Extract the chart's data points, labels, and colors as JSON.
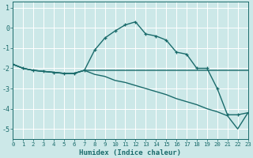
{
  "xlabel": "Humidex (Indice chaleur)",
  "xlim": [
    0,
    23
  ],
  "ylim": [
    -5.5,
    1.3
  ],
  "yticks": [
    1,
    0,
    -1,
    -2,
    -3,
    -4,
    -5
  ],
  "xticks": [
    0,
    1,
    2,
    3,
    4,
    5,
    6,
    7,
    8,
    9,
    10,
    11,
    12,
    13,
    14,
    15,
    16,
    17,
    18,
    19,
    20,
    21,
    22,
    23
  ],
  "background_color": "#cce8e8",
  "grid_color": "#aad4d4",
  "line_color": "#1a6b6b",
  "line1_x": [
    0,
    1,
    2,
    3,
    4,
    5,
    6,
    7,
    8,
    9,
    10,
    11,
    12,
    13,
    14,
    15,
    16,
    17,
    18,
    19,
    20,
    21,
    22,
    23
  ],
  "line1_y": [
    -1.8,
    -2.0,
    -2.1,
    -2.15,
    -2.2,
    -2.25,
    -2.25,
    -2.1,
    -1.1,
    -0.5,
    -0.15,
    0.15,
    0.3,
    -0.3,
    -0.4,
    -0.6,
    -1.2,
    -1.3,
    -2.0,
    -2.0,
    -3.0,
    -4.3,
    -4.3,
    -4.2
  ],
  "line2_x": [
    0,
    1,
    2,
    3,
    4,
    5,
    6,
    7,
    8,
    9,
    10,
    11,
    12,
    13,
    14,
    15,
    16,
    17,
    18,
    19,
    20,
    21,
    22,
    23
  ],
  "line2_y": [
    -1.8,
    -2.0,
    -2.1,
    -2.15,
    -2.2,
    -2.25,
    -2.25,
    -2.1,
    -2.1,
    -2.1,
    -2.1,
    -2.1,
    -2.1,
    -2.1,
    -2.1,
    -2.1,
    -2.1,
    -2.1,
    -2.1,
    -2.1,
    -2.1,
    -2.1,
    -2.1,
    -2.1
  ],
  "line3_x": [
    0,
    1,
    2,
    3,
    4,
    5,
    6,
    7,
    8,
    9,
    10,
    11,
    12,
    13,
    14,
    15,
    16,
    17,
    18,
    19,
    20,
    21,
    22,
    23
  ],
  "line3_y": [
    -1.8,
    -2.0,
    -2.1,
    -2.15,
    -2.2,
    -2.25,
    -2.25,
    -2.1,
    -2.3,
    -2.4,
    -2.6,
    -2.7,
    -2.85,
    -3.0,
    -3.15,
    -3.3,
    -3.5,
    -3.65,
    -3.8,
    -4.0,
    -4.15,
    -4.35,
    -5.0,
    -4.2
  ]
}
